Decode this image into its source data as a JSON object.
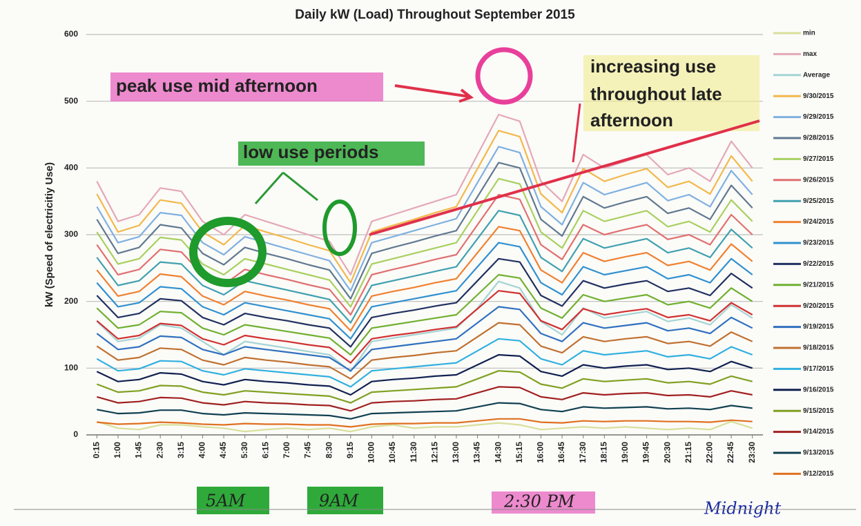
{
  "chart_data": {
    "type": "line",
    "title": "Daily kW (Load) Throughout September 2015",
    "y_label": "kW (Speed of electricitiy Use)",
    "ylim": [
      0,
      600
    ],
    "yticks": [
      0,
      100,
      200,
      300,
      400,
      500,
      600
    ],
    "grid": true,
    "legend": "right",
    "categories": [
      "0:15",
      "1:00",
      "1:45",
      "2:30",
      "3:15",
      "4:00",
      "4:45",
      "5:30",
      "6:15",
      "7:00",
      "7:45",
      "8:30",
      "9:15",
      "10:00",
      "10:45",
      "11:30",
      "12:15",
      "13:00",
      "13:45",
      "14:30",
      "15:15",
      "16:00",
      "16:45",
      "17:30",
      "18:15",
      "19:00",
      "19:45",
      "20:30",
      "21:15",
      "22:00",
      "22:45",
      "23:30"
    ],
    "series": [
      {
        "name": "min",
        "color": "#d8df9a",
        "values": [
          20,
          10,
          8,
          15,
          15,
          12,
          10,
          5,
          8,
          10,
          8,
          10,
          5,
          12,
          15,
          10,
          12,
          12,
          15,
          18,
          15,
          8,
          10,
          12,
          10,
          12,
          10,
          8,
          10,
          8,
          20,
          10
        ]
      },
      {
        "name": "max",
        "color": "#e4a8b8",
        "values": [
          380,
          320,
          330,
          370,
          365,
          320,
          300,
          330,
          320,
          310,
          300,
          290,
          240,
          320,
          330,
          340,
          350,
          360,
          420,
          480,
          470,
          380,
          350,
          420,
          400,
          410,
          420,
          390,
          400,
          380,
          440,
          400
        ]
      },
      {
        "name": "Average",
        "color": "#a4d4d4",
        "values": [
          170,
          140,
          145,
          165,
          160,
          140,
          120,
          140,
          135,
          130,
          125,
          120,
          95,
          140,
          145,
          150,
          155,
          160,
          190,
          230,
          220,
          170,
          150,
          190,
          175,
          180,
          185,
          170,
          175,
          165,
          195,
          175
        ]
      },
      {
        "name": "9/30/2015",
        "color": "#f2b84b",
        "values": [
          361,
          304,
          314,
          352,
          347,
          304,
          285,
          314,
          304,
          295,
          285,
          276,
          228,
          304,
          314,
          323,
          333,
          342,
          399,
          456,
          447,
          361,
          333,
          399,
          380,
          390,
          399,
          371,
          380,
          361,
          418,
          380
        ]
      },
      {
        "name": "9/29/2015",
        "color": "#7fb0e0",
        "values": [
          342,
          288,
          297,
          333,
          329,
          288,
          270,
          297,
          288,
          279,
          270,
          261,
          216,
          288,
          297,
          306,
          315,
          324,
          378,
          432,
          423,
          342,
          315,
          378,
          360,
          369,
          378,
          351,
          360,
          342,
          396,
          360
        ]
      },
      {
        "name": "9/28/2015",
        "color": "#607890",
        "values": [
          323,
          272,
          281,
          315,
          310,
          272,
          255,
          281,
          272,
          264,
          255,
          247,
          204,
          272,
          281,
          289,
          298,
          306,
          357,
          408,
          400,
          323,
          298,
          357,
          340,
          349,
          357,
          332,
          340,
          323,
          374,
          340
        ]
      },
      {
        "name": "9/27/2015",
        "color": "#a8d060",
        "values": [
          304,
          256,
          264,
          296,
          292,
          256,
          240,
          264,
          256,
          248,
          240,
          232,
          192,
          256,
          264,
          272,
          280,
          288,
          336,
          384,
          376,
          304,
          280,
          336,
          320,
          328,
          336,
          312,
          320,
          304,
          352,
          320
        ]
      },
      {
        "name": "9/26/2015",
        "color": "#e07070",
        "values": [
          285,
          240,
          248,
          278,
          274,
          240,
          225,
          248,
          240,
          233,
          225,
          218,
          180,
          240,
          248,
          255,
          263,
          270,
          315,
          360,
          353,
          285,
          263,
          315,
          300,
          308,
          315,
          293,
          300,
          285,
          330,
          300
        ]
      },
      {
        "name": "9/25/2015",
        "color": "#40a0b0",
        "values": [
          266,
          224,
          231,
          259,
          256,
          224,
          210,
          231,
          224,
          217,
          210,
          203,
          168,
          224,
          231,
          238,
          245,
          252,
          294,
          336,
          329,
          266,
          245,
          294,
          280,
          287,
          294,
          273,
          280,
          266,
          308,
          280
        ]
      },
      {
        "name": "9/24/2015",
        "color": "#f08030",
        "values": [
          247,
          208,
          215,
          241,
          237,
          208,
          195,
          215,
          208,
          202,
          195,
          189,
          156,
          208,
          215,
          221,
          228,
          234,
          273,
          312,
          306,
          247,
          228,
          273,
          260,
          267,
          273,
          254,
          260,
          247,
          286,
          260
        ]
      },
      {
        "name": "9/23/2015",
        "color": "#3090d0",
        "values": [
          228,
          192,
          198,
          222,
          219,
          192,
          180,
          198,
          192,
          186,
          180,
          174,
          144,
          192,
          198,
          204,
          210,
          216,
          252,
          288,
          282,
          228,
          210,
          252,
          240,
          246,
          252,
          234,
          240,
          228,
          264,
          240
        ]
      },
      {
        "name": "9/22/2015",
        "color": "#203060",
        "values": [
          209,
          176,
          182,
          204,
          201,
          176,
          165,
          182,
          176,
          171,
          165,
          160,
          132,
          176,
          182,
          187,
          193,
          198,
          231,
          264,
          259,
          209,
          193,
          231,
          220,
          226,
          231,
          215,
          220,
          209,
          242,
          220
        ]
      },
      {
        "name": "9/21/2015",
        "color": "#70b030",
        "values": [
          190,
          160,
          165,
          185,
          183,
          160,
          150,
          165,
          160,
          155,
          150,
          145,
          120,
          160,
          165,
          170,
          175,
          180,
          210,
          240,
          235,
          190,
          175,
          210,
          200,
          205,
          210,
          195,
          200,
          190,
          220,
          200
        ]
      },
      {
        "name": "9/20/2015",
        "color": "#d03030",
        "values": [
          171,
          144,
          149,
          167,
          164,
          144,
          135,
          149,
          144,
          140,
          135,
          131,
          108,
          144,
          149,
          153,
          158,
          162,
          189,
          216,
          212,
          171,
          158,
          189,
          180,
          185,
          189,
          176,
          180,
          171,
          198,
          180
        ]
      },
      {
        "name": "9/19/2015",
        "color": "#3070c0",
        "values": [
          152,
          128,
          132,
          148,
          146,
          128,
          120,
          132,
          128,
          124,
          120,
          116,
          96,
          128,
          132,
          136,
          140,
          144,
          168,
          192,
          188,
          152,
          140,
          168,
          160,
          164,
          168,
          156,
          160,
          152,
          176,
          160
        ]
      },
      {
        "name": "9/18/2015",
        "color": "#c07030",
        "values": [
          133,
          112,
          116,
          130,
          128,
          112,
          105,
          116,
          112,
          109,
          105,
          102,
          84,
          112,
          116,
          119,
          123,
          126,
          147,
          168,
          165,
          133,
          123,
          147,
          140,
          144,
          147,
          137,
          140,
          133,
          154,
          140
        ]
      },
      {
        "name": "9/17/2015",
        "color": "#30b0e0",
        "values": [
          114,
          96,
          99,
          111,
          110,
          96,
          90,
          99,
          96,
          93,
          90,
          87,
          72,
          96,
          99,
          102,
          105,
          108,
          126,
          144,
          141,
          114,
          105,
          126,
          120,
          123,
          126,
          117,
          120,
          114,
          132,
          120
        ]
      },
      {
        "name": "9/16/2015",
        "color": "#102050",
        "values": [
          95,
          80,
          83,
          93,
          91,
          80,
          75,
          83,
          80,
          78,
          75,
          73,
          60,
          80,
          83,
          85,
          88,
          90,
          105,
          120,
          118,
          95,
          88,
          105,
          100,
          103,
          105,
          98,
          100,
          95,
          110,
          100
        ]
      },
      {
        "name": "9/15/2015",
        "color": "#80a020",
        "values": [
          76,
          64,
          66,
          74,
          73,
          64,
          60,
          66,
          64,
          62,
          60,
          58,
          48,
          64,
          66,
          68,
          70,
          72,
          84,
          96,
          94,
          76,
          70,
          84,
          80,
          82,
          84,
          78,
          80,
          76,
          88,
          80
        ]
      },
      {
        "name": "9/14/2015",
        "color": "#a02020",
        "values": [
          57,
          48,
          50,
          56,
          55,
          48,
          45,
          50,
          48,
          47,
          45,
          44,
          36,
          48,
          50,
          51,
          53,
          54,
          63,
          72,
          71,
          57,
          53,
          63,
          60,
          62,
          63,
          59,
          60,
          57,
          66,
          60
        ]
      },
      {
        "name": "9/13/2015",
        "color": "#104050",
        "values": [
          38,
          32,
          33,
          37,
          37,
          32,
          30,
          33,
          32,
          31,
          30,
          29,
          24,
          32,
          33,
          34,
          35,
          36,
          42,
          48,
          47,
          38,
          35,
          42,
          40,
          41,
          42,
          39,
          40,
          38,
          44,
          40
        ]
      },
      {
        "name": "9/12/2015",
        "color": "#e07020",
        "values": [
          19,
          16,
          17,
          19,
          18,
          16,
          15,
          17,
          16,
          16,
          15,
          15,
          12,
          16,
          17,
          17,
          18,
          18,
          21,
          24,
          24,
          19,
          18,
          21,
          20,
          21,
          21,
          20,
          20,
          19,
          22,
          20
        ]
      }
    ],
    "annotations": [
      "peak use mid afternoon",
      "low use periods",
      "increasing use",
      "throughout late",
      "afternoon",
      "5AM",
      "9AM",
      "2:30 PM",
      "Midnight"
    ]
  }
}
